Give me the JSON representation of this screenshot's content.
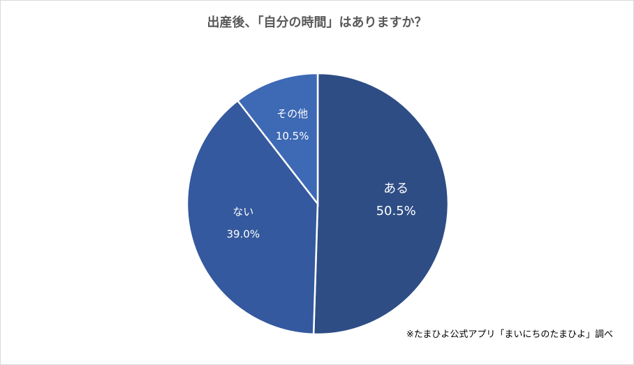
{
  "chart_data": {
    "type": "pie",
    "title": "出産後、「自分の時間」はありますか？",
    "slices": [
      {
        "label": "ある",
        "value": 50.5,
        "display": "50.5%",
        "color": "#2e4d85"
      },
      {
        "label": "ない",
        "value": 39.0,
        "display": "39.0%",
        "color": "#34599e"
      },
      {
        "label": "その他",
        "value": 10.5,
        "display": "10.5%",
        "color": "#3d69b5"
      }
    ],
    "start_angle": "12 o'clock",
    "direction": "clockwise",
    "legend": "none"
  },
  "note": "※たまひよ公式アプリ「まいにちのたまひよ」調べ"
}
